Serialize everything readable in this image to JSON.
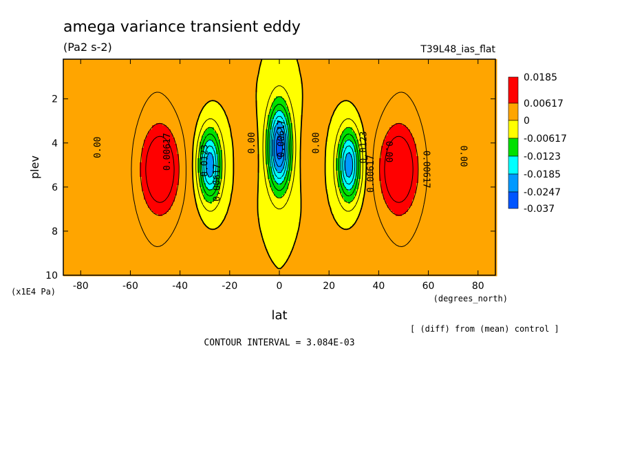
{
  "chart_data": {
    "type": "contour",
    "title": "amega variance transient eddy",
    "subtitle": "(Pa2 s-2)",
    "experiment": "T39L48_ias_flat",
    "xlabel": "lat",
    "xunits": "(degrees_north)",
    "ylabel": "plev",
    "yunits": "(x1E4 Pa)",
    "xlim": [
      -87,
      87
    ],
    "ylim": [
      10,
      0.2
    ],
    "xticks": [
      "-80",
      "-60",
      "-40",
      "-20",
      "0",
      "20",
      "40",
      "60",
      "80"
    ],
    "xtick_values": [
      -80,
      -60,
      -40,
      -20,
      0,
      20,
      40,
      60,
      80
    ],
    "yticks": [
      "2",
      "4",
      "6",
      "8",
      "10"
    ],
    "ytick_values": [
      2,
      4,
      6,
      8,
      10
    ],
    "legend_labels": [
      "0.0185",
      "0.00617",
      "0",
      "-0.00617",
      "-0.0123",
      "-0.0185",
      "-0.0247",
      "-0.037"
    ],
    "legend_colors": [
      "#ff0000",
      "#ffa500",
      "#ffff00",
      "#00e000",
      "#00ffff",
      "#0099ff",
      "#0055ff"
    ],
    "contour_labels": [
      "0.00",
      "0.00617",
      "0.0123",
      "0.00617",
      "0.00",
      "0.00617",
      "0.00",
      "0.0123",
      "0.00617",
      "0.00",
      "0.00617",
      "0.00"
    ],
    "note": "[ (diff) from (mean) control ]",
    "contour_interval": "CONTOUR INTERVAL = 3.084E-03",
    "fields": [
      {
        "lat": -48,
        "plev": 5.2,
        "sx": 7,
        "sy": 1.8,
        "amp": 0.013
      },
      {
        "lat": 48,
        "plev": 5.2,
        "sx": 7,
        "sy": 1.8,
        "amp": 0.013
      },
      {
        "lat": -28,
        "plev": 5.0,
        "sx": 4.5,
        "sy": 1.6,
        "amp": -0.022
      },
      {
        "lat": 28,
        "plev": 5.0,
        "sx": 4.5,
        "sy": 1.6,
        "amp": -0.022
      },
      {
        "lat": 0,
        "plev": 4.2,
        "sx": 4.5,
        "sy": 1.9,
        "amp": -0.027
      },
      {
        "lat": -12,
        "plev": 4.5,
        "sx": 3,
        "sy": 1.4,
        "amp": 0.003
      },
      {
        "lat": 12,
        "plev": 4.5,
        "sx": 3,
        "sy": 1.4,
        "amp": 0.003
      }
    ]
  }
}
